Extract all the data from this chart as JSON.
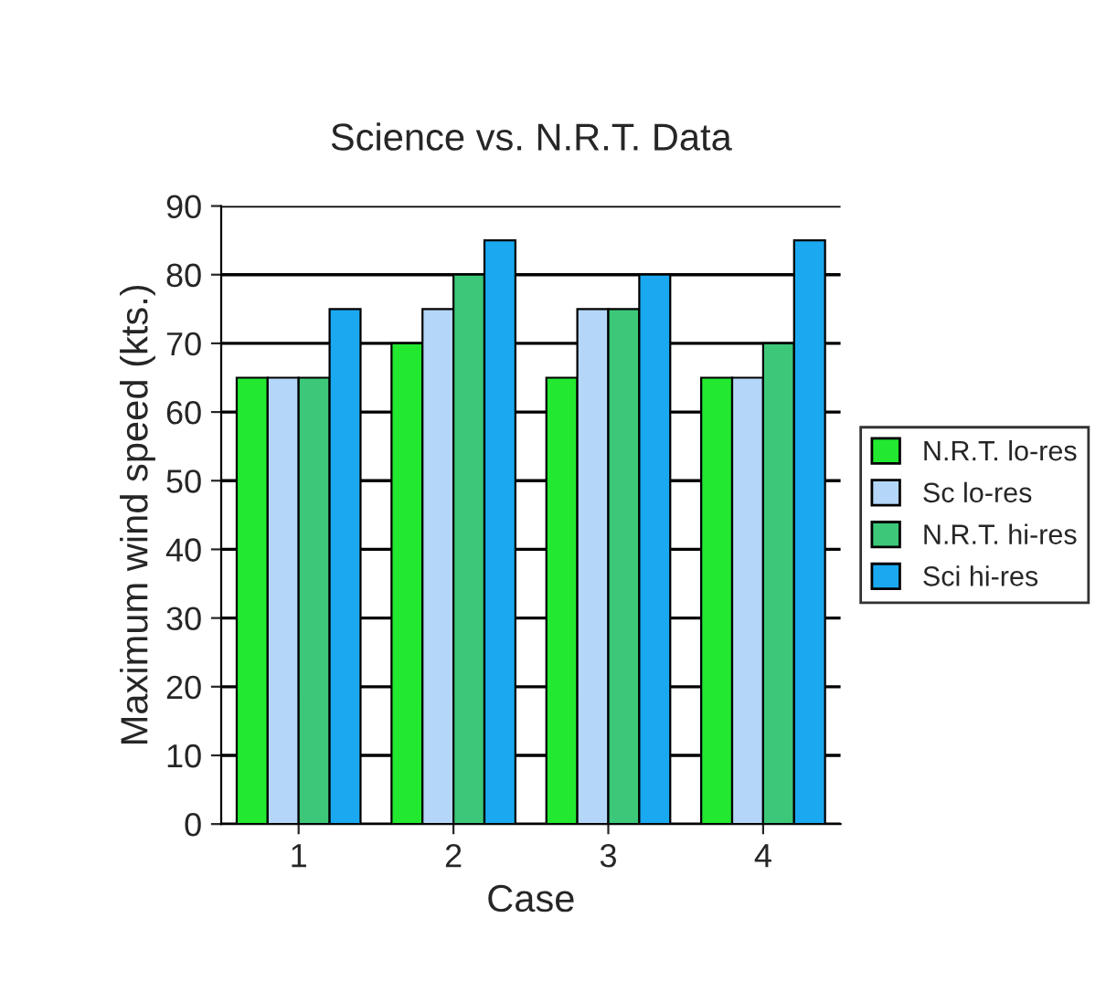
{
  "chart_data": {
    "type": "bar",
    "title": "Science vs. N.R.T. Data",
    "xlabel": "Case",
    "ylabel": "Maximum wind speed (kts.)",
    "categories": [
      "1",
      "2",
      "3",
      "4"
    ],
    "series": [
      {
        "name": "N.R.T. lo-res",
        "color": "#22e830",
        "values": [
          65,
          70,
          65,
          65
        ]
      },
      {
        "name": "Sc lo-res",
        "color": "#b4d6f8",
        "values": [
          65,
          75,
          75,
          65
        ]
      },
      {
        "name": "N.R.T. hi-res",
        "color": "#3cc878",
        "values": [
          65,
          80,
          75,
          70
        ]
      },
      {
        "name": "Sci hi-res",
        "color": "#1aa8f0",
        "values": [
          75,
          85,
          80,
          85
        ]
      }
    ],
    "ylim": [
      0,
      90
    ],
    "yticks": [
      0,
      10,
      20,
      30,
      40,
      50,
      60,
      70,
      80,
      90
    ],
    "grid": "y",
    "legend": "right"
  }
}
